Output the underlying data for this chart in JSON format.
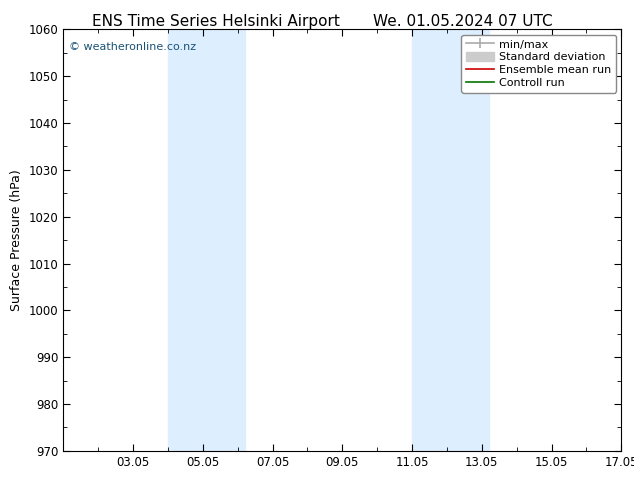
{
  "title_left": "ENS Time Series Helsinki Airport",
  "title_right": "We. 01.05.2024 07 UTC",
  "ylabel": "Surface Pressure (hPa)",
  "ylim": [
    970,
    1060
  ],
  "yticks": [
    970,
    980,
    990,
    1000,
    1010,
    1020,
    1030,
    1040,
    1050,
    1060
  ],
  "xtick_labels": [
    "03.05",
    "05.05",
    "07.05",
    "09.05",
    "11.05",
    "13.05",
    "15.05",
    "17.05"
  ],
  "xtick_positions": [
    2,
    4,
    6,
    8,
    10,
    12,
    14,
    16
  ],
  "xlim": [
    0,
    16
  ],
  "shaded_bands": [
    {
      "x_start": 3.0,
      "x_end": 5.2,
      "color": "#ddeeff"
    },
    {
      "x_start": 10.0,
      "x_end": 12.2,
      "color": "#ddeeff"
    }
  ],
  "watermark": "© weatheronline.co.nz",
  "watermark_color": "#1a5276",
  "legend_items": [
    {
      "label": "min/max",
      "color": "#aaaaaa",
      "lw": 1.2
    },
    {
      "label": "Standard deviation",
      "color": "#cccccc",
      "lw": 5
    },
    {
      "label": "Ensemble mean run",
      "color": "#cc0000",
      "lw": 1.2
    },
    {
      "label": "Controll run",
      "color": "#007700",
      "lw": 1.2
    }
  ],
  "background_color": "#ffffff",
  "plot_background": "#ffffff",
  "tick_color": "#000000",
  "title_fontsize": 11,
  "axis_label_fontsize": 9,
  "tick_fontsize": 8.5,
  "legend_fontsize": 8
}
